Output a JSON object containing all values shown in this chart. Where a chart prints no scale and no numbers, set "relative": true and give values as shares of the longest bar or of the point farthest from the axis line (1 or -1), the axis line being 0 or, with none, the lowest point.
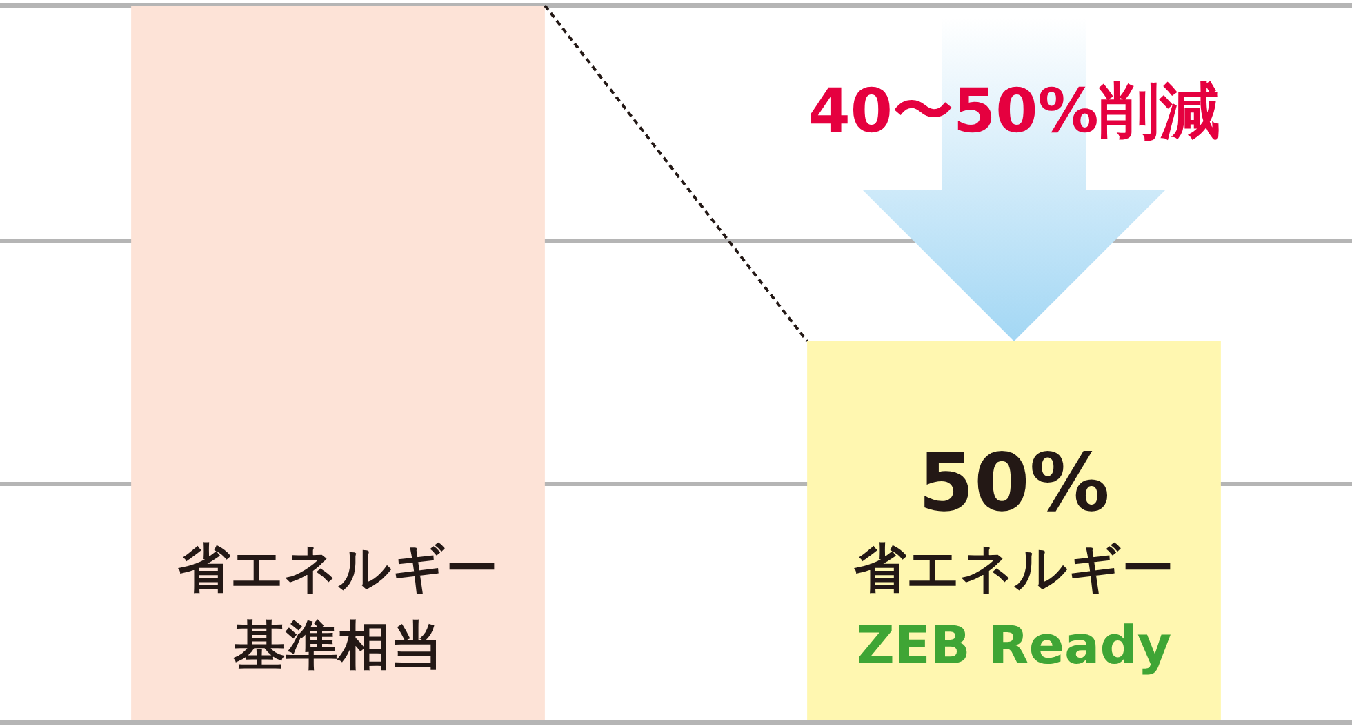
{
  "chart_data": {
    "type": "bar",
    "relative": true,
    "categories": [
      "省エネルギー基準相当",
      "省エネルギー"
    ],
    "values": [
      1,
      0.53
    ],
    "colors": [
      "#fde3d7",
      "#fff7b0"
    ],
    "ref_lines": [
      {
        "axis": "y",
        "value": 0.33,
        "color": "#b5b5b5"
      },
      {
        "axis": "y",
        "value": 0.67,
        "color": "#b5b5b5"
      },
      {
        "axis": "y",
        "value": 1,
        "color": "#b5b5b5"
      }
    ],
    "annotations": [
      "40〜50%削減",
      "50%",
      "ZEB Ready"
    ]
  }
}
